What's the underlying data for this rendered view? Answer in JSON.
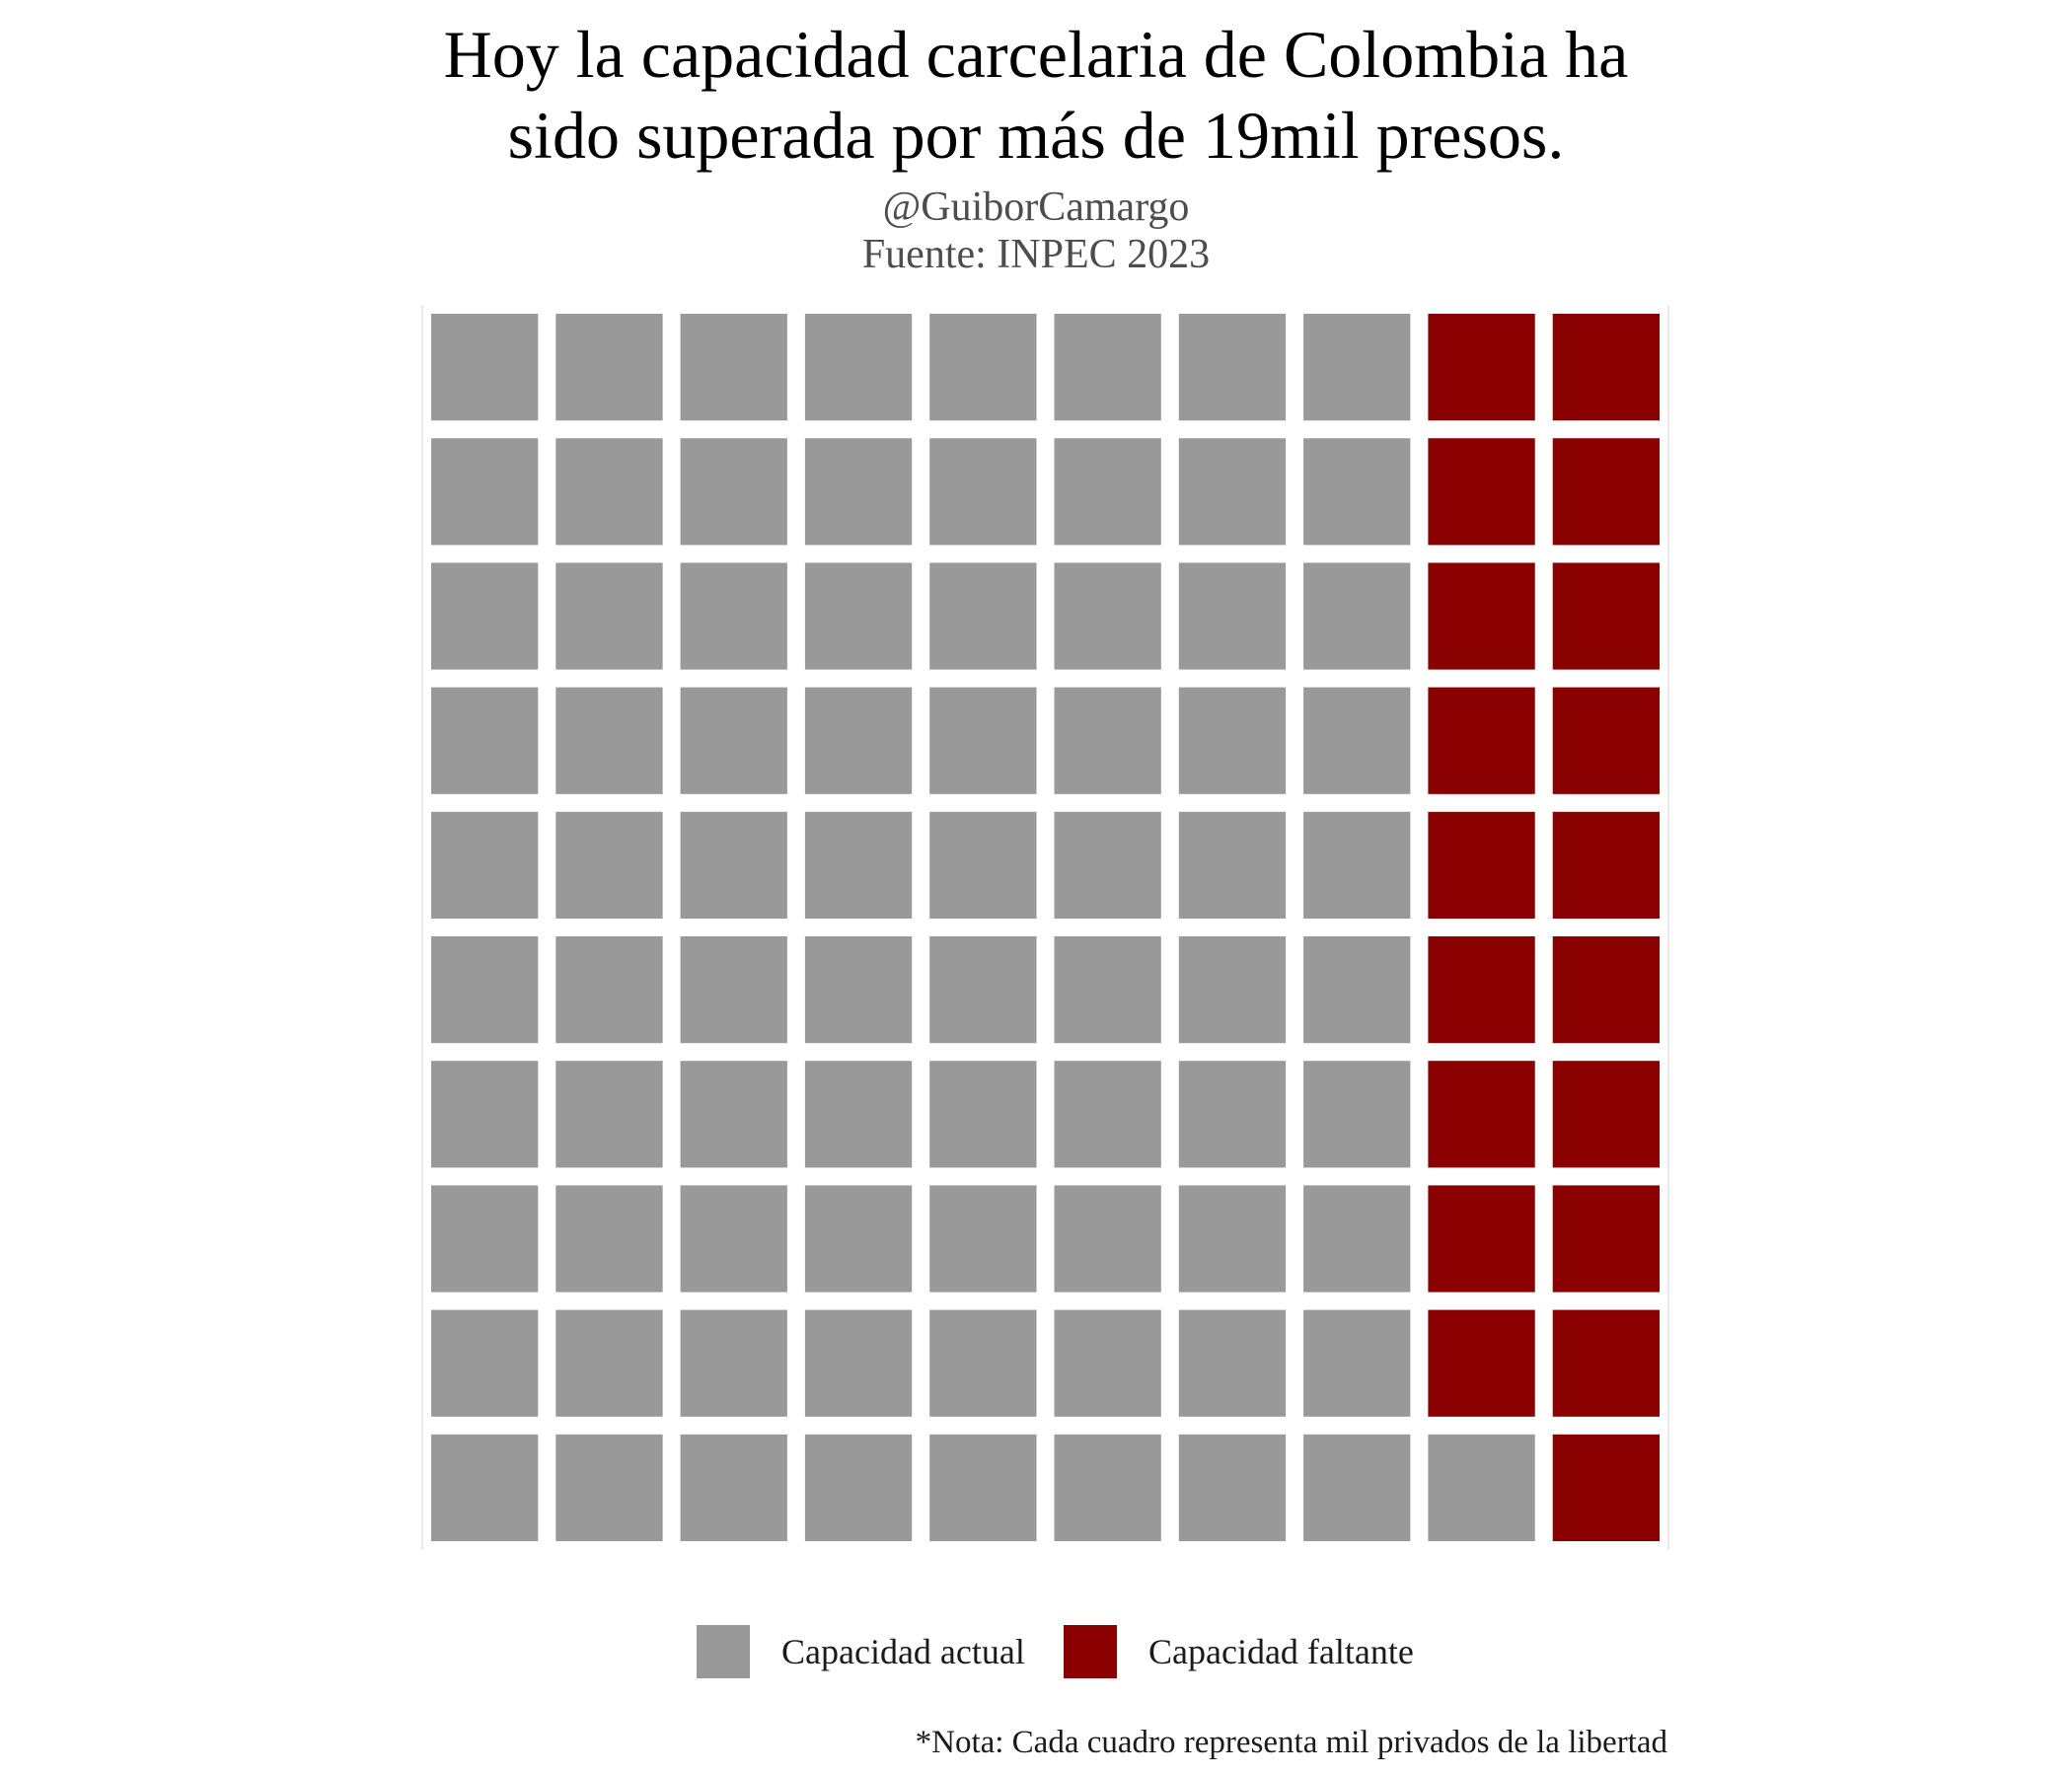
{
  "header": {
    "title_line1": "Hoy la capacidad carcelaria de Colombia ha",
    "title_line2": "sido superada por más de 19mil presos.",
    "subtitle_line1": "@GuiborCamargo",
    "subtitle_line2": "Fuente: INPEC 2023"
  },
  "caption": "*Nota: Cada cuadro representa mil privados de la libertad",
  "chart_data": {
    "type": "waffle",
    "rows": 10,
    "cols": 10,
    "unit": "mil privados de la libertad",
    "series": [
      {
        "name": "Capacidad actual",
        "value": 81,
        "color": "#999999"
      },
      {
        "name": "Capacidad faltante",
        "value": 19,
        "color": "#8B0000"
      }
    ],
    "fill_order": "column-major, from left column, top to bottom",
    "legend_position": "bottom",
    "grid": false,
    "cells": [
      [
        "Capacidad actual",
        "Capacidad actual",
        "Capacidad actual",
        "Capacidad actual",
        "Capacidad actual",
        "Capacidad actual",
        "Capacidad actual",
        "Capacidad actual",
        "Capacidad faltante",
        "Capacidad faltante"
      ],
      [
        "Capacidad actual",
        "Capacidad actual",
        "Capacidad actual",
        "Capacidad actual",
        "Capacidad actual",
        "Capacidad actual",
        "Capacidad actual",
        "Capacidad actual",
        "Capacidad faltante",
        "Capacidad faltante"
      ],
      [
        "Capacidad actual",
        "Capacidad actual",
        "Capacidad actual",
        "Capacidad actual",
        "Capacidad actual",
        "Capacidad actual",
        "Capacidad actual",
        "Capacidad actual",
        "Capacidad faltante",
        "Capacidad faltante"
      ],
      [
        "Capacidad actual",
        "Capacidad actual",
        "Capacidad actual",
        "Capacidad actual",
        "Capacidad actual",
        "Capacidad actual",
        "Capacidad actual",
        "Capacidad actual",
        "Capacidad faltante",
        "Capacidad faltante"
      ],
      [
        "Capacidad actual",
        "Capacidad actual",
        "Capacidad actual",
        "Capacidad actual",
        "Capacidad actual",
        "Capacidad actual",
        "Capacidad actual",
        "Capacidad actual",
        "Capacidad faltante",
        "Capacidad faltante"
      ],
      [
        "Capacidad actual",
        "Capacidad actual",
        "Capacidad actual",
        "Capacidad actual",
        "Capacidad actual",
        "Capacidad actual",
        "Capacidad actual",
        "Capacidad actual",
        "Capacidad faltante",
        "Capacidad faltante"
      ],
      [
        "Capacidad actual",
        "Capacidad actual",
        "Capacidad actual",
        "Capacidad actual",
        "Capacidad actual",
        "Capacidad actual",
        "Capacidad actual",
        "Capacidad actual",
        "Capacidad faltante",
        "Capacidad faltante"
      ],
      [
        "Capacidad actual",
        "Capacidad actual",
        "Capacidad actual",
        "Capacidad actual",
        "Capacidad actual",
        "Capacidad actual",
        "Capacidad actual",
        "Capacidad actual",
        "Capacidad faltante",
        "Capacidad faltante"
      ],
      [
        "Capacidad actual",
        "Capacidad actual",
        "Capacidad actual",
        "Capacidad actual",
        "Capacidad actual",
        "Capacidad actual",
        "Capacidad actual",
        "Capacidad actual",
        "Capacidad faltante",
        "Capacidad faltante"
      ],
      [
        "Capacidad actual",
        "Capacidad actual",
        "Capacidad actual",
        "Capacidad actual",
        "Capacidad actual",
        "Capacidad actual",
        "Capacidad actual",
        "Capacidad actual",
        "Capacidad actual",
        "Capacidad faltante"
      ]
    ]
  }
}
